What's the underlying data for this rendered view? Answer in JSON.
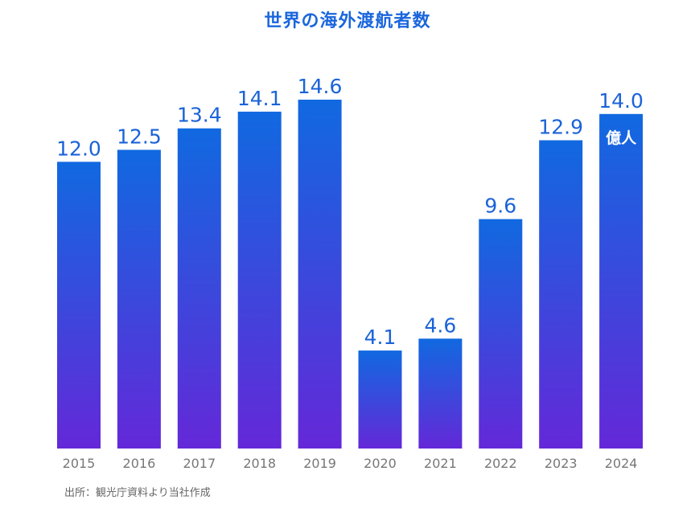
{
  "chart_data": {
    "type": "bar",
    "title": "世界の海外渡航者数",
    "categories": [
      "2015",
      "2016",
      "2017",
      "2018",
      "2019",
      "2020",
      "2021",
      "2022",
      "2023",
      "2024"
    ],
    "values": [
      12.0,
      12.5,
      13.4,
      14.1,
      14.6,
      4.1,
      4.6,
      9.6,
      12.9,
      14.0
    ],
    "value_labels": [
      "12.0",
      "12.5",
      "13.4",
      "14.1",
      "14.6",
      "4.1",
      "4.6",
      "9.6",
      "12.9",
      "14.0"
    ],
    "unit": "億人",
    "xlabel": "",
    "ylabel": "",
    "ylim": [
      0,
      14.6
    ],
    "grid": false,
    "legend": "none",
    "colors": {
      "bar_top": "#1169e0",
      "bar_bottom": "#6428d8",
      "value_text": "#1a63d8",
      "title_text": "#1a66dd",
      "tick_text": "#777777"
    }
  },
  "source": "出所：観光庁資料より当社作成"
}
